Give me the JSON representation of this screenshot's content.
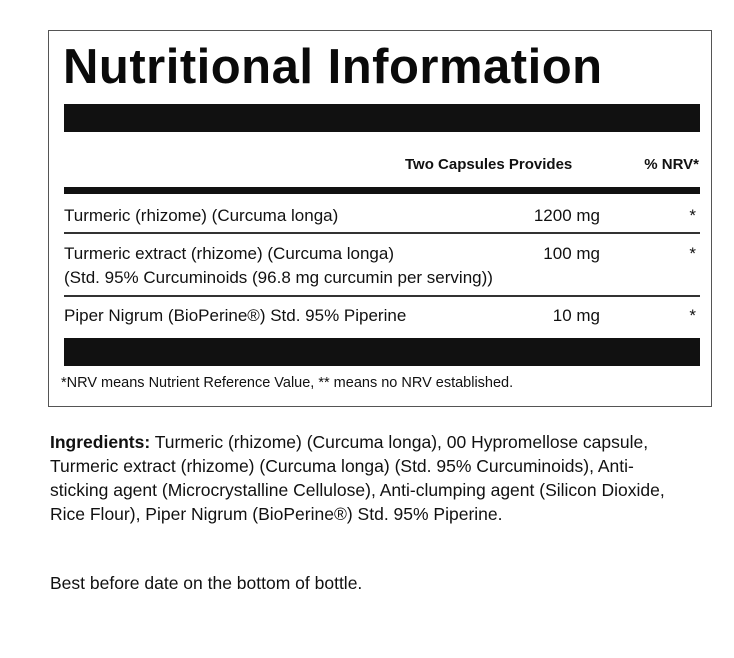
{
  "panel": {
    "title": "Nutritional Information",
    "header": {
      "serving": "Two Capsules Provides",
      "nrv": "% NRV*"
    },
    "rows": [
      {
        "name": "Turmeric (rhizome) (Curcuma longa)",
        "amount": "1200 mg",
        "nrv": "*"
      },
      {
        "name": "Turmeric extract (rhizome) (Curcuma longa)",
        "name_line2": "(Std. 95% Curcuminoids (96.8 mg curcumin per serving))",
        "amount": "100 mg",
        "nrv": "*"
      },
      {
        "name": "Piper Nigrum (BioPerine®) Std. 95% Piperine",
        "amount": "10 mg",
        "nrv": "*"
      }
    ],
    "footnote": "*NRV means Nutrient Reference Value, ** means no NRV established."
  },
  "ingredients": {
    "label": "Ingredients:",
    "text": " Turmeric (rhizome) (Curcuma longa), 00 Hypromellose capsule, Turmeric extract (rhizome) (Curcuma longa) (Std. 95% Curcuminoids), Anti-sticking agent (Microcrystalline Cellulose), Anti-clumping agent (Silicon Dioxide, Rice Flour), Piper Nigrum (BioPerine®) Std. 95% Piperine."
  },
  "best_before": "Best before date on the bottom of bottle."
}
